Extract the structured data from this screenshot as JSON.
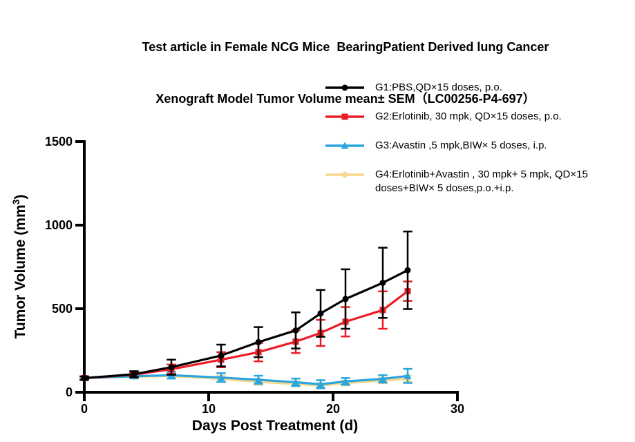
{
  "title": {
    "line1": "Test article in Female NCG Mice  BearingPatient Derived lung Cancer",
    "line2": "Xenograft Model Tumor Volume mean± SEM（LC00256-P4-697）"
  },
  "chart_data": {
    "type": "line",
    "x": [
      0,
      4,
      7,
      11,
      14,
      17,
      19,
      21,
      24,
      26
    ],
    "series": [
      {
        "name": "G1:PBS,QD×15 doses, p.o.",
        "color": "#000000",
        "marker": "circle",
        "values": [
          85,
          108,
          150,
          220,
          300,
          370,
          472,
          558,
          655,
          730
        ],
        "errors": [
          10,
          18,
          45,
          65,
          90,
          108,
          140,
          178,
          210,
          232
        ]
      },
      {
        "name": "G2:Erlotinib, 30 mpk, QD×15 doses, p.o.",
        "color": "#EC1C24",
        "marker": "square",
        "values": [
          85,
          105,
          138,
          195,
          240,
          303,
          355,
          422,
          492,
          605
        ],
        "errors": [
          10,
          14,
          28,
          45,
          55,
          68,
          78,
          88,
          112,
          58
        ]
      },
      {
        "name": "G3:Avastin ,5 mpk,BIW× 5 doses, i.p.",
        "color": "#2AA5DF",
        "marker": "triangle",
        "values": [
          85,
          96,
          102,
          88,
          75,
          60,
          48,
          65,
          80,
          98
        ],
        "errors": [
          8,
          12,
          20,
          26,
          24,
          22,
          24,
          20,
          22,
          42
        ]
      },
      {
        "name": "G4:Erlotinib+Avastin , 30 mpk+ 5 mpk, QD×15 doses+BIW× 5 doses,p.o.+i.p.",
        "color": "#F6D78C",
        "marker": "diamond",
        "values": [
          85,
          93,
          97,
          80,
          62,
          50,
          40,
          55,
          70,
          82
        ],
        "errors": [
          6,
          10,
          14,
          18,
          18,
          14,
          14,
          14,
          16,
          18
        ]
      }
    ],
    "xlabel": "Days Post Treatment (d)",
    "ylabel": {
      "prefix": "Tumor Volume (mm",
      "sup": "3",
      "suffix": ")"
    },
    "xlim": [
      0,
      30
    ],
    "ylim": [
      0,
      1500
    ],
    "xticks": [
      0,
      10,
      20,
      30
    ],
    "yticks": [
      0,
      500,
      1000,
      1500
    ],
    "grid": false,
    "error_bars": "SEM",
    "legend_position": "top-right"
  }
}
